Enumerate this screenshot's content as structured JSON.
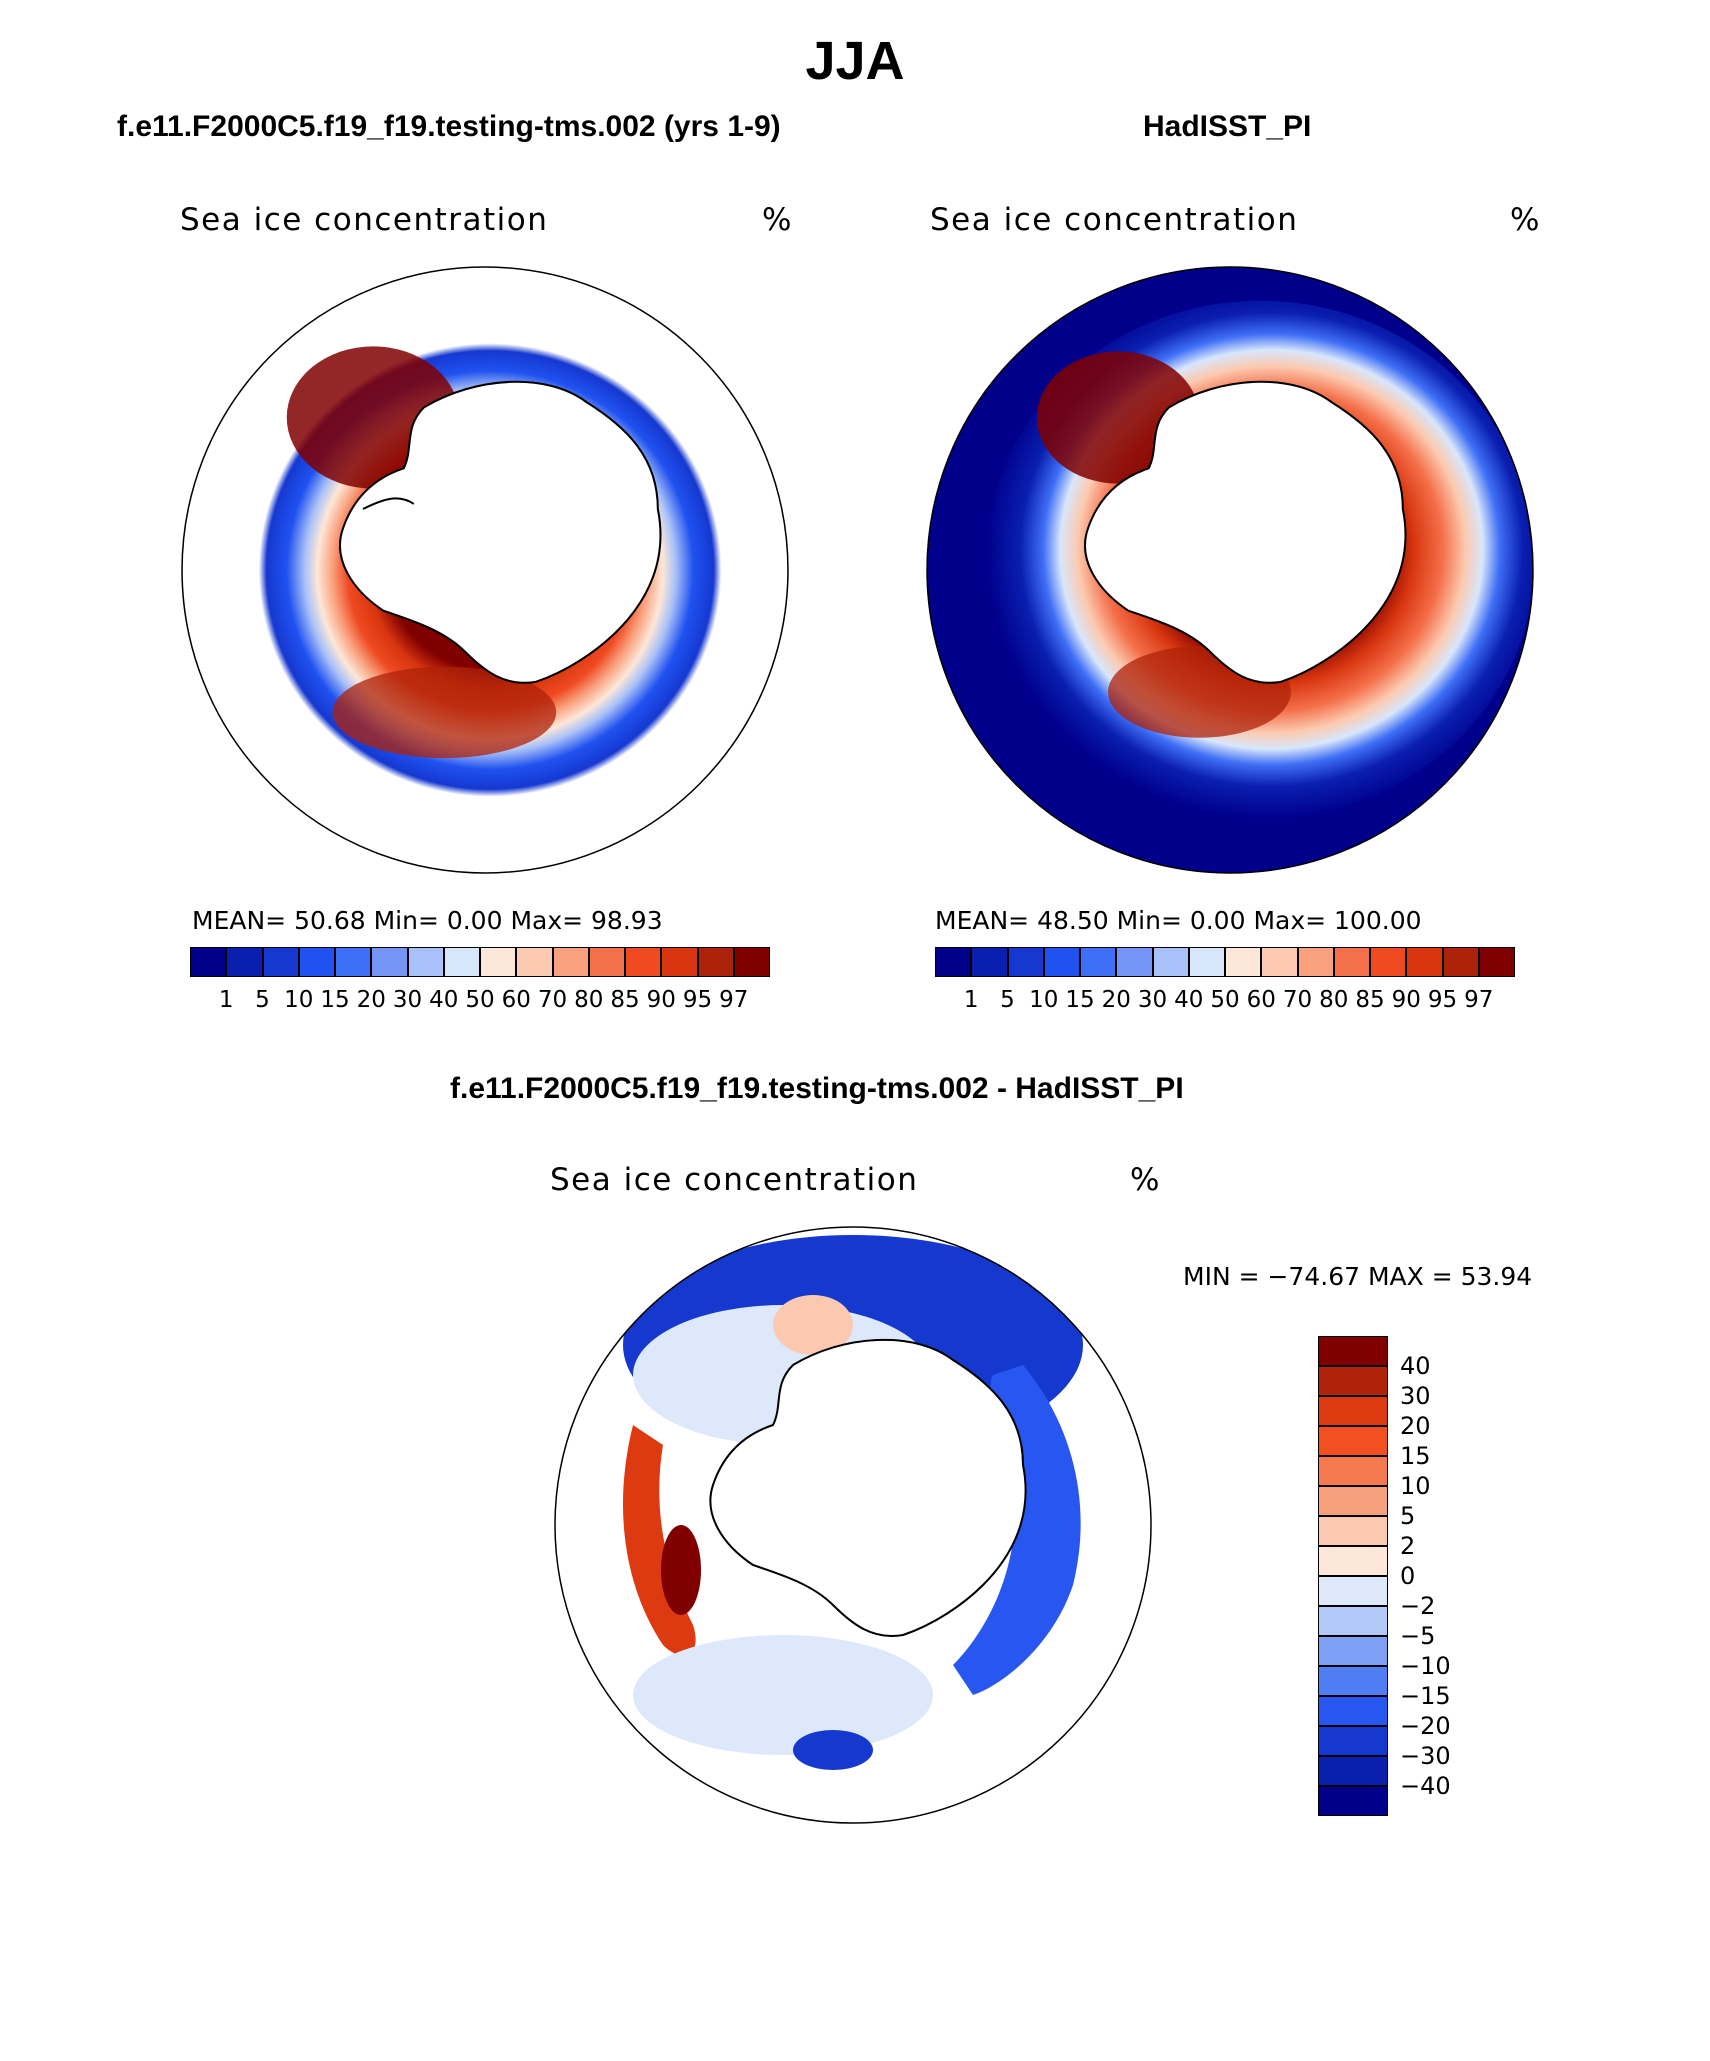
{
  "figure": {
    "season": "JJA",
    "panel_left": {
      "case_title": "f.e11.F2000C5.f19_f19.testing-tms.002 (yrs 1-9)",
      "field_label": "Sea ice concentration",
      "units": "%",
      "stats_line": "MEAN=   50.68   Min=      0.00    Max=    98.93"
    },
    "panel_right": {
      "case_title": "HadISST_PI",
      "field_label": "Sea ice concentration",
      "units": "%",
      "stats_line": "MEAN=   48.50   Min=      0.00    Max=  100.00"
    },
    "panel_diff": {
      "case_title": "f.e11.F2000C5.f19_f19.testing-tms.002 - HadISST_PI",
      "field_label": "Sea ice concentration",
      "units": "%",
      "stats_line": "MIN  =  −74.67  MAX  =    53.94"
    },
    "colorbar_levels": [
      "1",
      "5",
      "10",
      "15",
      "20",
      "30",
      "40",
      "50",
      "60",
      "70",
      "80",
      "85",
      "90",
      "95",
      "97"
    ],
    "colorbar_colors": [
      "#00008b",
      "#0a1fb0",
      "#1538d0",
      "#2052f0",
      "#3f6ff6",
      "#7495f5",
      "#a9c1f8",
      "#d8e6fb",
      "#fde7d8",
      "#fccab0",
      "#f9a07c",
      "#f4704a",
      "#ef4a22",
      "#d8360f",
      "#ad220a",
      "#800000"
    ],
    "diff_levels": [
      "40",
      "30",
      "20",
      "15",
      "10",
      "5",
      "2",
      "0",
      "−2",
      "−5",
      "−10",
      "−15",
      "−20",
      "−30",
      "−40"
    ],
    "diff_colors": [
      "#800000",
      "#b0220a",
      "#de3a12",
      "#f25020",
      "#f4794f",
      "#f6a07c",
      "#fbc9b0",
      "#fde7d8",
      "#dde9fb",
      "#b3caf8",
      "#7da0f4",
      "#4f7ef4",
      "#2856f0",
      "#1538cf",
      "#0a20ac",
      "#00008b"
    ]
  },
  "chart_data": [
    {
      "type": "heatmap",
      "title": "f.e11.F2000C5.f19_f19.testing-tms.002 (yrs 1-9)",
      "variable": "Sea ice concentration",
      "units": "%",
      "mean": 50.68,
      "min": 0.0,
      "max": 98.93,
      "levels": [
        1,
        5,
        10,
        15,
        20,
        30,
        40,
        50,
        60,
        70,
        80,
        85,
        90,
        95,
        97
      ]
    },
    {
      "type": "heatmap",
      "title": "HadISST_PI",
      "variable": "Sea ice concentration",
      "units": "%",
      "mean": 48.5,
      "min": 0.0,
      "max": 100.0,
      "levels": [
        1,
        5,
        10,
        15,
        20,
        30,
        40,
        50,
        60,
        70,
        80,
        85,
        90,
        95,
        97
      ]
    },
    {
      "type": "heatmap",
      "title": "f.e11.F2000C5.f19_f19.testing-tms.002 - HadISST_PI",
      "variable": "Sea ice concentration",
      "units": "%",
      "min": -74.67,
      "max": 53.94,
      "levels": [
        40,
        30,
        20,
        15,
        10,
        5,
        2,
        0,
        -2,
        -5,
        -10,
        -15,
        -20,
        -30,
        -40
      ]
    }
  ]
}
